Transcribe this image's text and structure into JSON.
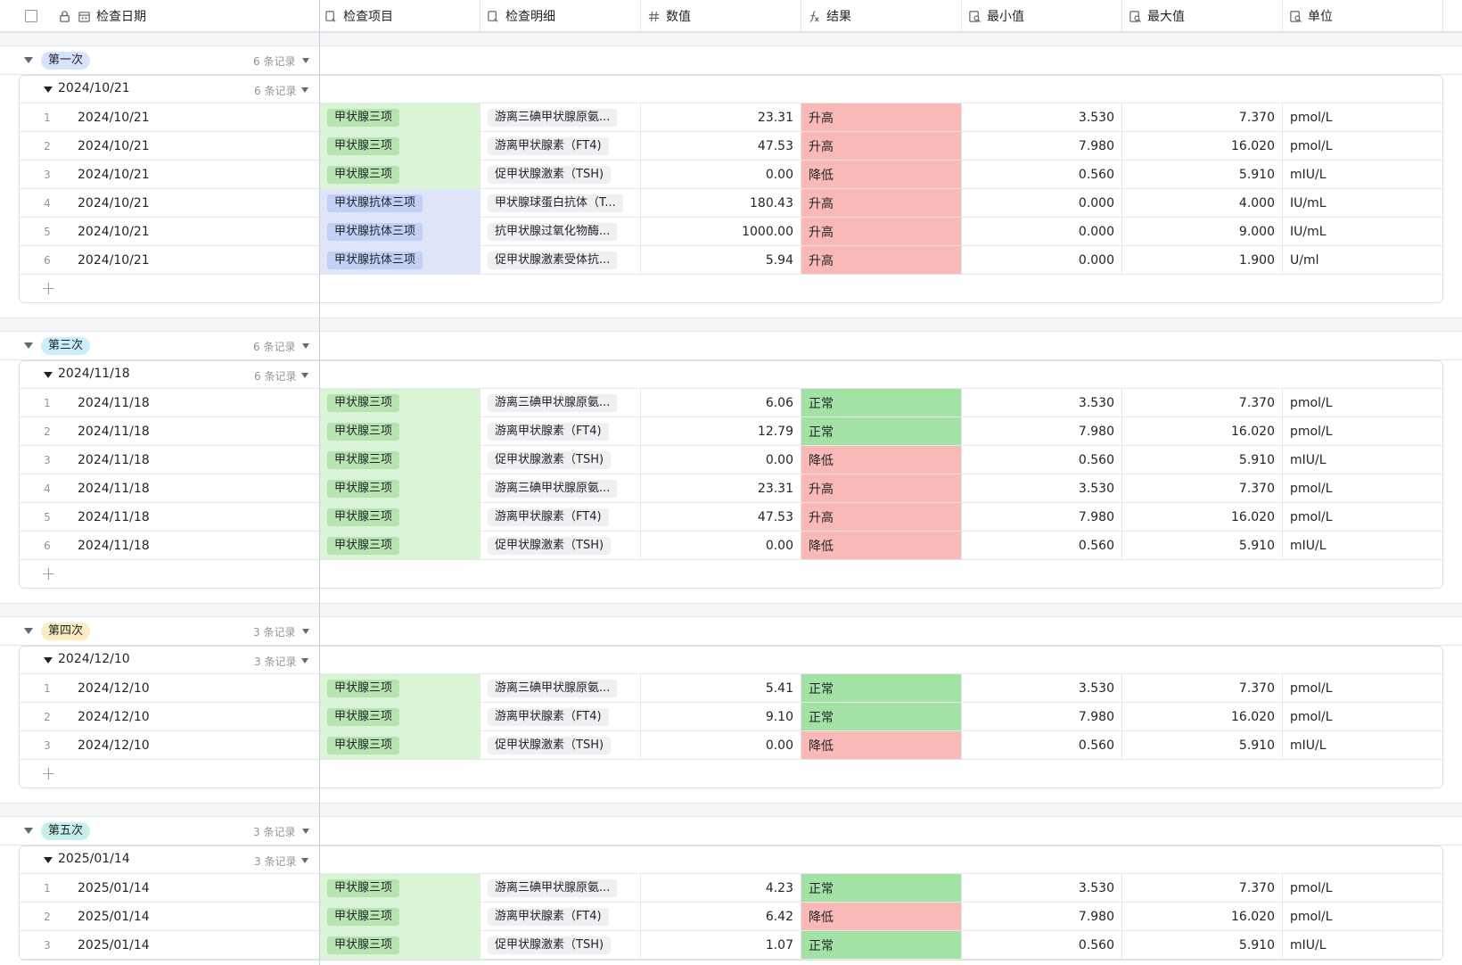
{
  "colors": {
    "item_a_cell": "#d9f5d6",
    "item_a_pill": "#b7e5b0",
    "item_b_cell": "#dfe6fb",
    "item_b_pill": "#c3d0f5",
    "res_high": "#f9b9b7",
    "res_low": "#f9b9b7",
    "res_normal": "#a3e2a5",
    "tag_blue": "#d5e3fc",
    "tag_cyan": "#cbeef8",
    "tag_yellow": "#fbedc0",
    "tag_teal": "#c7efe9"
  },
  "header": {
    "select_all": "",
    "columns": [
      {
        "label": "检查日期",
        "icon": "calendar-icon"
      },
      {
        "label": "检查项目",
        "icon": "link-icon"
      },
      {
        "label": "检查明细",
        "icon": "link-icon"
      },
      {
        "label": "数值",
        "icon": "number-icon"
      },
      {
        "label": "结果",
        "icon": "formula-icon"
      },
      {
        "label": "最小值",
        "icon": "lookup-icon"
      },
      {
        "label": "最大值",
        "icon": "lookup-icon"
      },
      {
        "label": "单位",
        "icon": "lookup-icon"
      }
    ]
  },
  "groups": [
    {
      "label": "第一次",
      "tag_color": "tag_blue",
      "count": "6 条记录",
      "date": "2024/10/21",
      "date_count": "6 条记录",
      "rows": [
        {
          "n": "1",
          "date": "2024/10/21",
          "item": "甲状腺三项",
          "item_kind": "a",
          "detail": "游离三碘甲状腺原氨...",
          "value": "23.31",
          "result": "升高",
          "res_kind": "high",
          "min": "3.530",
          "max": "7.370",
          "unit": "pmol/L"
        },
        {
          "n": "2",
          "date": "2024/10/21",
          "item": "甲状腺三项",
          "item_kind": "a",
          "detail": "游离甲状腺素（FT4)",
          "value": "47.53",
          "result": "升高",
          "res_kind": "high",
          "min": "7.980",
          "max": "16.020",
          "unit": "pmol/L"
        },
        {
          "n": "3",
          "date": "2024/10/21",
          "item": "甲状腺三项",
          "item_kind": "a",
          "detail": "促甲状腺激素（TSH)",
          "value": "0.00",
          "result": "降低",
          "res_kind": "low",
          "min": "0.560",
          "max": "5.910",
          "unit": "mIU/L"
        },
        {
          "n": "4",
          "date": "2024/10/21",
          "item": "甲状腺抗体三项",
          "item_kind": "b",
          "detail": "甲状腺球蛋白抗体（T...",
          "value": "180.43",
          "result": "升高",
          "res_kind": "high",
          "min": "0.000",
          "max": "4.000",
          "unit": "IU/mL"
        },
        {
          "n": "5",
          "date": "2024/10/21",
          "item": "甲状腺抗体三项",
          "item_kind": "b",
          "detail": "抗甲状腺过氧化物酶...",
          "value": "1000.00",
          "result": "升高",
          "res_kind": "high",
          "min": "0.000",
          "max": "9.000",
          "unit": "IU/mL"
        },
        {
          "n": "6",
          "date": "2024/10/21",
          "item": "甲状腺抗体三项",
          "item_kind": "b",
          "detail": "促甲状腺激素受体抗...",
          "value": "5.94",
          "result": "升高",
          "res_kind": "high",
          "min": "0.000",
          "max": "1.900",
          "unit": "U/ml"
        }
      ]
    },
    {
      "label": "第三次",
      "tag_color": "tag_cyan",
      "count": "6 条记录",
      "date": "2024/11/18",
      "date_count": "6 条记录",
      "rows": [
        {
          "n": "1",
          "date": "2024/11/18",
          "item": "甲状腺三项",
          "item_kind": "a",
          "detail": "游离三碘甲状腺原氨...",
          "value": "6.06",
          "result": "正常",
          "res_kind": "normal",
          "min": "3.530",
          "max": "7.370",
          "unit": "pmol/L"
        },
        {
          "n": "2",
          "date": "2024/11/18",
          "item": "甲状腺三项",
          "item_kind": "a",
          "detail": "游离甲状腺素（FT4)",
          "value": "12.79",
          "result": "正常",
          "res_kind": "normal",
          "min": "7.980",
          "max": "16.020",
          "unit": "pmol/L"
        },
        {
          "n": "3",
          "date": "2024/11/18",
          "item": "甲状腺三项",
          "item_kind": "a",
          "detail": "促甲状腺激素（TSH)",
          "value": "0.00",
          "result": "降低",
          "res_kind": "low",
          "min": "0.560",
          "max": "5.910",
          "unit": "mIU/L"
        },
        {
          "n": "4",
          "date": "2024/11/18",
          "item": "甲状腺三项",
          "item_kind": "a",
          "detail": "游离三碘甲状腺原氨...",
          "value": "23.31",
          "result": "升高",
          "res_kind": "high",
          "min": "3.530",
          "max": "7.370",
          "unit": "pmol/L"
        },
        {
          "n": "5",
          "date": "2024/11/18",
          "item": "甲状腺三项",
          "item_kind": "a",
          "detail": "游离甲状腺素（FT4)",
          "value": "47.53",
          "result": "升高",
          "res_kind": "high",
          "min": "7.980",
          "max": "16.020",
          "unit": "pmol/L"
        },
        {
          "n": "6",
          "date": "2024/11/18",
          "item": "甲状腺三项",
          "item_kind": "a",
          "detail": "促甲状腺激素（TSH)",
          "value": "0.00",
          "result": "降低",
          "res_kind": "low",
          "min": "0.560",
          "max": "5.910",
          "unit": "mIU/L"
        }
      ]
    },
    {
      "label": "第四次",
      "tag_color": "tag_yellow",
      "count": "3 条记录",
      "date": "2024/12/10",
      "date_count": "3 条记录",
      "rows": [
        {
          "n": "1",
          "date": "2024/12/10",
          "item": "甲状腺三项",
          "item_kind": "a",
          "detail": "游离三碘甲状腺原氨...",
          "value": "5.41",
          "result": "正常",
          "res_kind": "normal",
          "min": "3.530",
          "max": "7.370",
          "unit": "pmol/L"
        },
        {
          "n": "2",
          "date": "2024/12/10",
          "item": "甲状腺三项",
          "item_kind": "a",
          "detail": "游离甲状腺素（FT4)",
          "value": "9.10",
          "result": "正常",
          "res_kind": "normal",
          "min": "7.980",
          "max": "16.020",
          "unit": "pmol/L"
        },
        {
          "n": "3",
          "date": "2024/12/10",
          "item": "甲状腺三项",
          "item_kind": "a",
          "detail": "促甲状腺激素（TSH)",
          "value": "0.00",
          "result": "降低",
          "res_kind": "low",
          "min": "0.560",
          "max": "5.910",
          "unit": "mIU/L"
        }
      ]
    },
    {
      "label": "第五次",
      "tag_color": "tag_teal",
      "count": "3 条记录",
      "date": "2025/01/14",
      "date_count": "3 条记录",
      "rows": [
        {
          "n": "1",
          "date": "2025/01/14",
          "item": "甲状腺三项",
          "item_kind": "a",
          "detail": "游离三碘甲状腺原氨...",
          "value": "4.23",
          "result": "正常",
          "res_kind": "normal",
          "min": "3.530",
          "max": "7.370",
          "unit": "pmol/L"
        },
        {
          "n": "2",
          "date": "2025/01/14",
          "item": "甲状腺三项",
          "item_kind": "a",
          "detail": "游离甲状腺素（FT4)",
          "value": "6.42",
          "result": "降低",
          "res_kind": "low",
          "min": "7.980",
          "max": "16.020",
          "unit": "pmol/L"
        },
        {
          "n": "3",
          "date": "2025/01/14",
          "item": "甲状腺三项",
          "item_kind": "a",
          "detail": "促甲状腺激素（TSH)",
          "value": "1.07",
          "result": "正常",
          "res_kind": "normal",
          "min": "0.560",
          "max": "5.910",
          "unit": "mIU/L"
        }
      ]
    }
  ]
}
